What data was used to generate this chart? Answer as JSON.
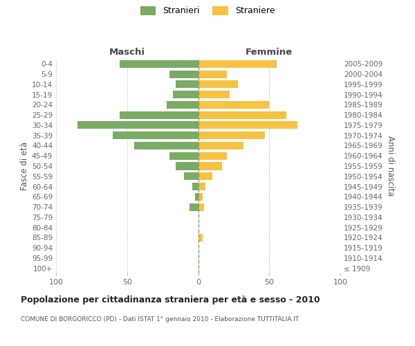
{
  "age_groups": [
    "100+",
    "95-99",
    "90-94",
    "85-89",
    "80-84",
    "75-79",
    "70-74",
    "65-69",
    "60-64",
    "55-59",
    "50-54",
    "45-49",
    "40-44",
    "35-39",
    "30-34",
    "25-29",
    "20-24",
    "15-19",
    "10-14",
    "5-9",
    "0-4"
  ],
  "birth_years": [
    "≤ 1909",
    "1910-1914",
    "1915-1919",
    "1920-1924",
    "1925-1929",
    "1930-1934",
    "1935-1939",
    "1940-1944",
    "1945-1949",
    "1950-1954",
    "1955-1959",
    "1960-1964",
    "1965-1969",
    "1970-1974",
    "1975-1979",
    "1980-1984",
    "1985-1989",
    "1990-1994",
    "1995-1999",
    "2000-2004",
    "2005-2009"
  ],
  "males": [
    0,
    0,
    0,
    0,
    0,
    0,
    6,
    2,
    4,
    10,
    16,
    20,
    45,
    60,
    85,
    55,
    22,
    18,
    16,
    20,
    55
  ],
  "females": [
    0,
    0,
    0,
    3,
    0,
    0,
    4,
    3,
    5,
    10,
    17,
    20,
    32,
    47,
    70,
    62,
    50,
    22,
    28,
    20,
    55
  ],
  "male_color": "#7aab65",
  "female_color": "#f5c242",
  "background_color": "#ffffff",
  "grid_color": "#cccccc",
  "dashed_line_color": "#999966",
  "xlim": 100,
  "title": "Popolazione per cittadinanza straniera per età e sesso - 2010",
  "subtitle": "COMUNE DI BORGORICCO (PD) - Dati ISTAT 1° gennaio 2010 - Elaborazione TUTTITALIA.IT",
  "ylabel_left": "Fasce di età",
  "ylabel_right": "Anni di nascita",
  "legend_male": "Stranieri",
  "legend_female": "Straniere",
  "label_maschi": "Maschi",
  "label_femmine": "Femmine"
}
